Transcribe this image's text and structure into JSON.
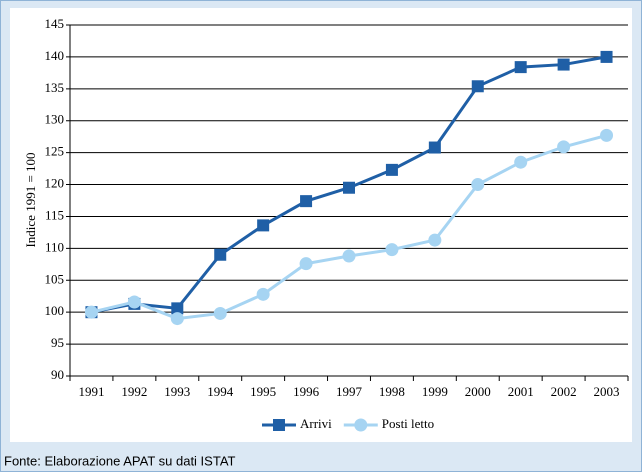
{
  "chart_data": {
    "type": "line",
    "y_label": "Indice 1991 = 100",
    "source": "Fonte: Elaborazione APAT su dati ISTAT",
    "categories": [
      "1991",
      "1992",
      "1993",
      "1994",
      "1995",
      "1996",
      "1997",
      "1998",
      "1999",
      "2000",
      "2001",
      "2002",
      "2003"
    ],
    "series": [
      {
        "name": "Arrivi",
        "color": "#1f5fa6",
        "marker": "square",
        "values": [
          100,
          101.3,
          100.6,
          109,
          113.6,
          117.4,
          119.5,
          122.3,
          125.8,
          135.4,
          138.4,
          138.8,
          140
        ]
      },
      {
        "name": "Posti letto",
        "color": "#a6d4f2",
        "marker": "circle",
        "values": [
          100,
          101.6,
          99,
          99.8,
          102.8,
          107.6,
          108.8,
          109.8,
          111.3,
          120,
          123.5,
          125.9,
          127.7
        ]
      }
    ],
    "ylim": [
      90,
      145
    ],
    "yticks": [
      90,
      95,
      100,
      105,
      110,
      115,
      120,
      125,
      130,
      135,
      140,
      145
    ],
    "grid": true,
    "legend": "bottom"
  }
}
